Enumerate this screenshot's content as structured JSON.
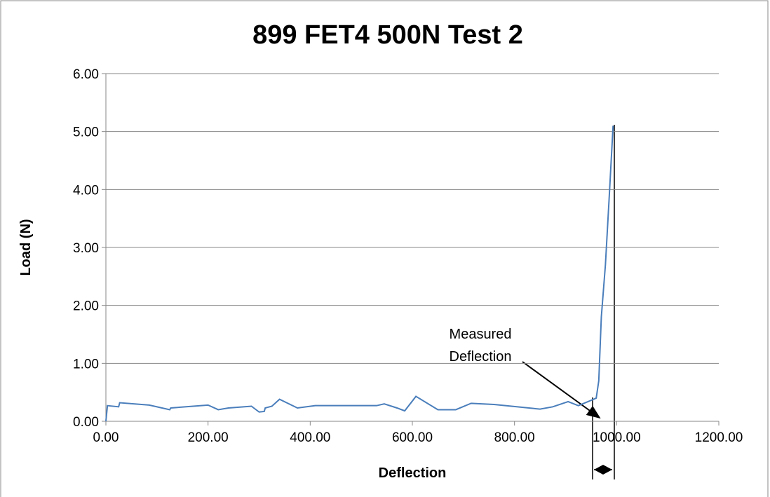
{
  "chart_data": {
    "type": "line",
    "title": "899 FET4 500N Test 2",
    "x_label": "Deflection",
    "y_label": "Load (N)",
    "annotation": [
      "Measured",
      "Deflection"
    ],
    "xlim": [
      0,
      1200
    ],
    "ylim": [
      0,
      6
    ],
    "xticks": [
      {
        "value": 0,
        "label": "0.00"
      },
      {
        "value": 200,
        "label": "200.00"
      },
      {
        "value": 400,
        "label": "400.00"
      },
      {
        "value": 600,
        "label": "600.00"
      },
      {
        "value": 800,
        "label": "800.00"
      },
      {
        "value": 1000,
        "label": "1000.00"
      },
      {
        "value": 1200,
        "label": "1200.00"
      }
    ],
    "yticks": [
      {
        "value": 0,
        "label": "0.00"
      },
      {
        "value": 1,
        "label": "1.00"
      },
      {
        "value": 2,
        "label": "2.00"
      },
      {
        "value": 3,
        "label": "3.00"
      },
      {
        "value": 4,
        "label": "4.00"
      },
      {
        "value": 5,
        "label": "5.00"
      },
      {
        "value": 6,
        "label": "6.00"
      }
    ],
    "grid": true,
    "x": [
      0,
      3,
      25,
      27,
      85,
      125,
      127,
      200,
      220,
      240,
      285,
      300,
      310,
      312,
      325,
      340,
      375,
      410,
      530,
      545,
      570,
      585,
      607,
      650,
      685,
      715,
      760,
      850,
      875,
      905,
      925,
      955,
      960,
      965,
      970,
      978,
      985,
      993
    ],
    "series": [
      {
        "color": "#4a7ebb",
        "values": [
          0,
          0.27,
          0.25,
          0.32,
          0.28,
          0.2,
          0.23,
          0.28,
          0.2,
          0.23,
          0.26,
          0.16,
          0.17,
          0.23,
          0.26,
          0.38,
          0.23,
          0.27,
          0.27,
          0.3,
          0.23,
          0.18,
          0.43,
          0.2,
          0.2,
          0.31,
          0.29,
          0.21,
          0.25,
          0.34,
          0.27,
          0.38,
          0.4,
          0.7,
          1.8,
          2.7,
          3.8,
          5.1
        ]
      }
    ]
  }
}
